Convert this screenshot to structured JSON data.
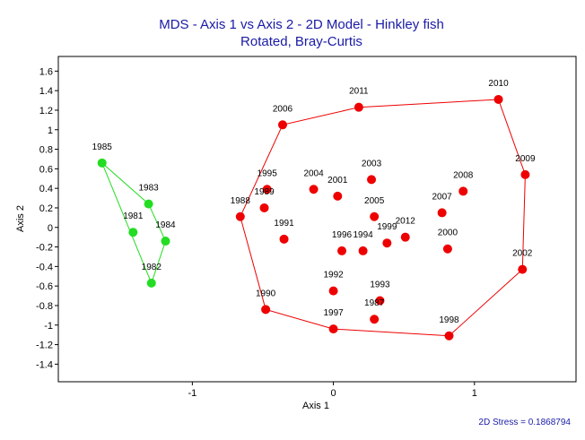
{
  "chart_data": {
    "type": "scatter",
    "title": "MDS - Axis 1 vs Axis 2 - 2D Model - Hinkley fish",
    "subtitle": "Rotated,  Bray-Curtis",
    "xlabel": "Axis 1",
    "ylabel": "Axis 2",
    "xlim": [
      -1.95,
      1.72
    ],
    "ylim": [
      -1.58,
      1.75
    ],
    "x_ticks": [
      {
        "value": -1,
        "label": "-1"
      },
      {
        "value": 0,
        "label": "0"
      },
      {
        "value": 1,
        "label": "1"
      }
    ],
    "y_ticks": [
      {
        "value": 1.6,
        "label": "1.6"
      },
      {
        "value": 1.4,
        "label": "1.4"
      },
      {
        "value": 1.2,
        "label": "1.2"
      },
      {
        "value": 1.0,
        "label": "1"
      },
      {
        "value": 0.8,
        "label": "0.8"
      },
      {
        "value": 0.6,
        "label": "0.6"
      },
      {
        "value": 0.4,
        "label": "0.4"
      },
      {
        "value": 0.2,
        "label": "0.2"
      },
      {
        "value": 0.0,
        "label": "0"
      },
      {
        "value": -0.2,
        "label": "-0.2"
      },
      {
        "value": -0.4,
        "label": "-0.4"
      },
      {
        "value": -0.6,
        "label": "-0.6"
      },
      {
        "value": -0.8,
        "label": "-0.8"
      },
      {
        "value": -1.0,
        "label": "-1"
      },
      {
        "value": -1.2,
        "label": "-1.2"
      },
      {
        "value": -1.4,
        "label": "-1.4"
      }
    ],
    "grid": false,
    "stress_text": "2D Stress = 0.1868794",
    "groups": [
      {
        "color": "#22dd22",
        "hull": [
          "1985",
          "1983",
          "1984",
          "1982",
          "1985"
        ],
        "points": [
          {
            "label": "1985",
            "x": -1.64,
            "y": 0.66
          },
          {
            "label": "1983",
            "x": -1.31,
            "y": 0.24
          },
          {
            "label": "1981",
            "x": -1.42,
            "y": -0.05
          },
          {
            "label": "1984",
            "x": -1.19,
            "y": -0.14
          },
          {
            "label": "1982",
            "x": -1.29,
            "y": -0.57
          }
        ]
      },
      {
        "color": "#ee0000",
        "hull": [
          "2010",
          "2009",
          "2002",
          "1998",
          "1997",
          "1990",
          "1988",
          "2006",
          "2011",
          "2010"
        ],
        "points": [
          {
            "label": "2010",
            "x": 1.17,
            "y": 1.31
          },
          {
            "label": "2011",
            "x": 0.18,
            "y": 1.23
          },
          {
            "label": "2006",
            "x": -0.36,
            "y": 1.05
          },
          {
            "label": "2009",
            "x": 1.36,
            "y": 0.54
          },
          {
            "label": "2008",
            "x": 0.92,
            "y": 0.37
          },
          {
            "label": "2007",
            "x": 0.77,
            "y": 0.15
          },
          {
            "label": "2003",
            "x": 0.27,
            "y": 0.49
          },
          {
            "label": "2004",
            "x": -0.14,
            "y": 0.39
          },
          {
            "label": "2001",
            "x": 0.03,
            "y": 0.32
          },
          {
            "label": "1995",
            "x": -0.47,
            "y": 0.39
          },
          {
            "label": "1989",
            "x": -0.49,
            "y": 0.2
          },
          {
            "label": "1988",
            "x": -0.66,
            "y": 0.11
          },
          {
            "label": "2005",
            "x": 0.29,
            "y": 0.11
          },
          {
            "label": "1991",
            "x": -0.35,
            "y": -0.12
          },
          {
            "label": "1996",
            "x": 0.06,
            "y": -0.24
          },
          {
            "label": "1994",
            "x": 0.21,
            "y": -0.24
          },
          {
            "label": "1999",
            "x": 0.38,
            "y": -0.16
          },
          {
            "label": "2012",
            "x": 0.51,
            "y": -0.1
          },
          {
            "label": "2000",
            "x": 0.81,
            "y": -0.22
          },
          {
            "label": "2002",
            "x": 1.34,
            "y": -0.43
          },
          {
            "label": "1992",
            "x": 0.0,
            "y": -0.65
          },
          {
            "label": "1993",
            "x": 0.33,
            "y": -0.75
          },
          {
            "label": "1987",
            "x": 0.29,
            "y": -0.94
          },
          {
            "label": "1990",
            "x": -0.48,
            "y": -0.84
          },
          {
            "label": "1997",
            "x": 0.0,
            "y": -1.04
          },
          {
            "label": "1998",
            "x": 0.82,
            "y": -1.11
          }
        ]
      }
    ]
  }
}
